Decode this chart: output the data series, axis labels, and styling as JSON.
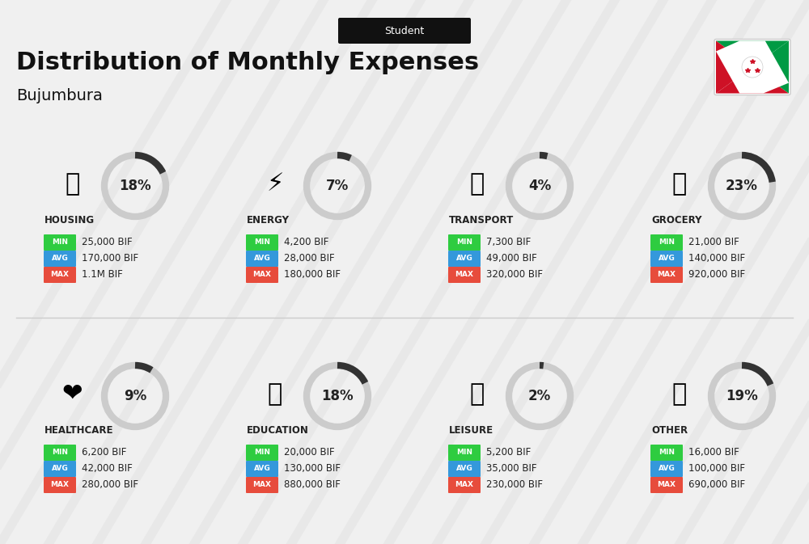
{
  "title": "Distribution of Monthly Expenses",
  "subtitle": "Student",
  "city": "Bujumbura",
  "background_color": "#f0f0f0",
  "categories": [
    {
      "name": "HOUSING",
      "pct": 18,
      "min": "25,000 BIF",
      "avg": "170,000 BIF",
      "max": "1.1M BIF",
      "row": 0,
      "col": 0
    },
    {
      "name": "ENERGY",
      "pct": 7,
      "min": "4,200 BIF",
      "avg": "28,000 BIF",
      "max": "180,000 BIF",
      "row": 0,
      "col": 1
    },
    {
      "name": "TRANSPORT",
      "pct": 4,
      "min": "7,300 BIF",
      "avg": "49,000 BIF",
      "max": "320,000 BIF",
      "row": 0,
      "col": 2
    },
    {
      "name": "GROCERY",
      "pct": 23,
      "min": "21,000 BIF",
      "avg": "140,000 BIF",
      "max": "920,000 BIF",
      "row": 0,
      "col": 3
    },
    {
      "name": "HEALTHCARE",
      "pct": 9,
      "min": "6,200 BIF",
      "avg": "42,000 BIF",
      "max": "280,000 BIF",
      "row": 1,
      "col": 0
    },
    {
      "name": "EDUCATION",
      "pct": 18,
      "min": "20,000 BIF",
      "avg": "130,000 BIF",
      "max": "880,000 BIF",
      "row": 1,
      "col": 1
    },
    {
      "name": "LEISURE",
      "pct": 2,
      "min": "5,200 BIF",
      "avg": "35,000 BIF",
      "max": "230,000 BIF",
      "row": 1,
      "col": 2
    },
    {
      "name": "OTHER",
      "pct": 19,
      "min": "16,000 BIF",
      "avg": "100,000 BIF",
      "max": "690,000 BIF",
      "row": 1,
      "col": 3
    }
  ],
  "min_color": "#2ecc40",
  "avg_color": "#3498db",
  "max_color": "#e74c3c",
  "label_color": "#ffffff",
  "title_color": "#111111",
  "text_color": "#222222",
  "arc_color": "#333333",
  "arc_bg_color": "#cccccc"
}
